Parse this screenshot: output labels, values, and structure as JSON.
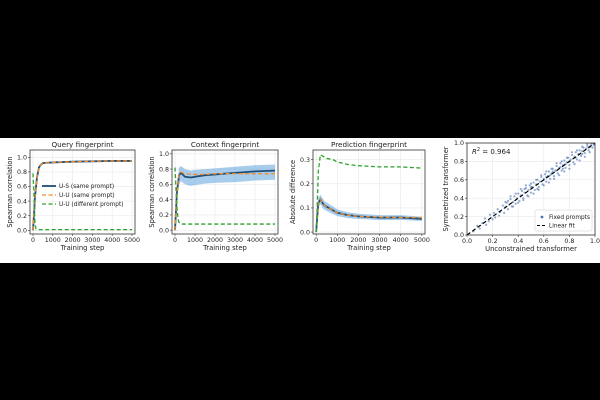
{
  "chart_data": [
    {
      "type": "line",
      "title": "Query fingerprint",
      "xlabel": "Training step",
      "ylabel": "Spearman correlation",
      "xlim": [
        -150,
        5150
      ],
      "ylim": [
        -0.05,
        1.1
      ],
      "xticks": [
        0,
        1000,
        2000,
        3000,
        4000,
        5000
      ],
      "yticks": [
        0.0,
        0.2,
        0.4,
        0.6,
        0.8,
        1.0
      ],
      "ytick_labels": [
        "0.0",
        "0.2",
        "0.4",
        "0.6",
        "0.8",
        "1.0"
      ],
      "grid": true,
      "legend": {
        "position": "center-right",
        "entries": [
          "U-S (same prompt)",
          "U-U (same prompt)",
          "U-U (different prompt)"
        ]
      },
      "series": [
        {
          "name": "U-S (same prompt)",
          "color": "#1f4e79",
          "dash": "solid",
          "x": [
            0,
            50,
            100,
            200,
            300,
            400,
            500,
            700,
            1000,
            2000,
            3000,
            4000,
            5000
          ],
          "y": [
            0.0,
            0.2,
            0.45,
            0.72,
            0.86,
            0.9,
            0.92,
            0.925,
            0.93,
            0.94,
            0.945,
            0.95,
            0.95
          ]
        },
        {
          "name": "U-U (same prompt)",
          "color": "#f28e2b",
          "dash": "dashed",
          "x": [
            0,
            50,
            100,
            200,
            300,
            400,
            500,
            700,
            1000,
            2000,
            3000,
            4000,
            5000
          ],
          "y": [
            0.0,
            0.2,
            0.45,
            0.72,
            0.86,
            0.9,
            0.92,
            0.925,
            0.93,
            0.94,
            0.945,
            0.95,
            0.95
          ]
        },
        {
          "name": "U-U (different prompt)",
          "color": "#2ca02c",
          "dash": "dashed",
          "x": [
            0,
            50,
            100,
            150,
            250,
            500,
            1000,
            2000,
            3000,
            4000,
            5000
          ],
          "y": [
            0.78,
            0.5,
            0.1,
            0.02,
            0.01,
            0.01,
            0.01,
            0.01,
            0.01,
            0.01,
            0.01
          ]
        }
      ]
    },
    {
      "type": "line",
      "title": "Context fingerprint",
      "xlabel": "Training step",
      "ylabel": "Spearman correlation",
      "xlim": [
        -150,
        5150
      ],
      "ylim": [
        -0.05,
        1.05
      ],
      "xticks": [
        0,
        1000,
        2000,
        3000,
        4000,
        5000
      ],
      "yticks": [
        0.0,
        0.2,
        0.4,
        0.6,
        0.8,
        1.0
      ],
      "ytick_labels": [
        "0.0",
        "0.2",
        "0.4",
        "0.6",
        "0.8",
        "1.0"
      ],
      "grid": true,
      "series": [
        {
          "name": "U-S (same prompt)",
          "color": "#1f4e79",
          "dash": "solid",
          "x": [
            0,
            100,
            200,
            300,
            500,
            800,
            1000,
            1500,
            2000,
            3000,
            4000,
            5000
          ],
          "y": [
            0.0,
            0.5,
            0.72,
            0.75,
            0.7,
            0.69,
            0.7,
            0.72,
            0.73,
            0.75,
            0.77,
            0.78
          ],
          "band_low": [
            0.0,
            0.42,
            0.6,
            0.64,
            0.6,
            0.58,
            0.59,
            0.61,
            0.62,
            0.63,
            0.65,
            0.66
          ],
          "band_high": [
            0.0,
            0.58,
            0.82,
            0.84,
            0.8,
            0.78,
            0.79,
            0.8,
            0.81,
            0.83,
            0.85,
            0.86
          ]
        },
        {
          "name": "U-U (same prompt)",
          "color": "#f28e2b",
          "dash": "dashed",
          "x": [
            0,
            100,
            200,
            300,
            500,
            800,
            1000,
            1500,
            2000,
            3000,
            4000,
            5000
          ],
          "y": [
            0.0,
            0.5,
            0.73,
            0.76,
            0.74,
            0.73,
            0.73,
            0.73,
            0.74,
            0.74,
            0.74,
            0.74
          ]
        },
        {
          "name": "U-U (different prompt)",
          "color": "#2ca02c",
          "dash": "dashed",
          "x": [
            0,
            50,
            100,
            150,
            200,
            300,
            500,
            1000,
            2000,
            3000,
            4000,
            5000
          ],
          "y": [
            0.82,
            0.55,
            0.3,
            0.15,
            0.1,
            0.08,
            0.08,
            0.08,
            0.08,
            0.08,
            0.08,
            0.08
          ]
        }
      ]
    },
    {
      "type": "line",
      "title": "Prediction fingerprint",
      "xlabel": "Training step",
      "ylabel": "Absolute difference",
      "xlim": [
        -150,
        5150
      ],
      "ylim": [
        -0.008,
        0.34
      ],
      "xticks": [
        0,
        1000,
        2000,
        3000,
        4000,
        5000
      ],
      "yticks": [
        0.0,
        0.1,
        0.2,
        0.3
      ],
      "ytick_labels": [
        "0.0",
        "0.1",
        "0.2",
        "0.3"
      ],
      "grid": true,
      "series": [
        {
          "name": "U-S (same prompt)",
          "color": "#1f4e79",
          "dash": "solid",
          "x": [
            0,
            50,
            100,
            200,
            300,
            400,
            600,
            800,
            1000,
            1500,
            2000,
            3000,
            4000,
            5000
          ],
          "y": [
            0.0,
            0.06,
            0.12,
            0.135,
            0.12,
            0.11,
            0.1,
            0.09,
            0.08,
            0.07,
            0.065,
            0.06,
            0.06,
            0.055
          ],
          "band_low": [
            0.0,
            0.05,
            0.1,
            0.115,
            0.1,
            0.092,
            0.083,
            0.074,
            0.066,
            0.058,
            0.054,
            0.05,
            0.05,
            0.046
          ],
          "band_high": [
            0.0,
            0.07,
            0.14,
            0.155,
            0.14,
            0.128,
            0.117,
            0.106,
            0.094,
            0.082,
            0.076,
            0.07,
            0.07,
            0.064
          ]
        },
        {
          "name": "U-U (same prompt)",
          "color": "#f28e2b",
          "dash": "dashed",
          "x": [
            0,
            50,
            100,
            200,
            300,
            400,
            600,
            800,
            1000,
            1500,
            2000,
            3000,
            4000,
            5000
          ],
          "y": [
            0.0,
            0.06,
            0.12,
            0.135,
            0.12,
            0.11,
            0.1,
            0.09,
            0.08,
            0.07,
            0.065,
            0.062,
            0.06,
            0.06
          ]
        },
        {
          "name": "U-U (different prompt)",
          "color": "#2ca02c",
          "dash": "dashed",
          "x": [
            0,
            50,
            100,
            200,
            300,
            500,
            800,
            1000,
            1500,
            2000,
            3000,
            4000,
            5000
          ],
          "y": [
            0.0,
            0.1,
            0.25,
            0.32,
            0.315,
            0.305,
            0.3,
            0.29,
            0.28,
            0.275,
            0.27,
            0.27,
            0.265
          ]
        }
      ]
    },
    {
      "type": "scatter",
      "title": "",
      "xlabel": "Unconstrained transformer",
      "ylabel": "Symmetrized transformer",
      "xlim": [
        0,
        1
      ],
      "ylim": [
        0,
        1
      ],
      "xticks": [
        0.0,
        0.2,
        0.4,
        0.6,
        0.8,
        1.0
      ],
      "yticks": [
        0.0,
        0.2,
        0.4,
        0.6,
        0.8,
        1.0
      ],
      "xtick_labels": [
        "0.0",
        "0.2",
        "0.4",
        "0.6",
        "0.8",
        "1.0"
      ],
      "ytick_labels": [
        "0.0",
        "0.2",
        "0.4",
        "0.6",
        "0.8",
        "1.0"
      ],
      "grid": true,
      "annotation": {
        "prefix": "R",
        "sup": "2",
        "suffix": " = 0.964"
      },
      "legend": {
        "position": "lower-right",
        "entries": [
          "Fixed prompts",
          "Linear fit"
        ]
      },
      "point_color": "#4a72b0",
      "fit_color": "#000000",
      "fit": {
        "slope": 1.0,
        "intercept": 0.0
      },
      "points": [
        [
          0.05,
          0.04
        ],
        [
          0.08,
          0.1
        ],
        [
          0.1,
          0.07
        ],
        [
          0.12,
          0.13
        ],
        [
          0.14,
          0.18
        ],
        [
          0.15,
          0.11
        ],
        [
          0.17,
          0.15
        ],
        [
          0.18,
          0.22
        ],
        [
          0.2,
          0.17
        ],
        [
          0.21,
          0.24
        ],
        [
          0.22,
          0.19
        ],
        [
          0.24,
          0.28
        ],
        [
          0.25,
          0.21
        ],
        [
          0.26,
          0.25
        ],
        [
          0.28,
          0.32
        ],
        [
          0.29,
          0.24
        ],
        [
          0.3,
          0.3
        ],
        [
          0.31,
          0.35
        ],
        [
          0.32,
          0.28
        ],
        [
          0.33,
          0.33
        ],
        [
          0.34,
          0.39
        ],
        [
          0.35,
          0.31
        ],
        [
          0.36,
          0.36
        ],
        [
          0.37,
          0.42
        ],
        [
          0.38,
          0.34
        ],
        [
          0.39,
          0.4
        ],
        [
          0.4,
          0.45
        ],
        [
          0.41,
          0.37
        ],
        [
          0.42,
          0.43
        ],
        [
          0.43,
          0.48
        ],
        [
          0.44,
          0.4
        ],
        [
          0.45,
          0.46
        ],
        [
          0.46,
          0.51
        ],
        [
          0.47,
          0.43
        ],
        [
          0.48,
          0.49
        ],
        [
          0.49,
          0.54
        ],
        [
          0.5,
          0.46
        ],
        [
          0.51,
          0.52
        ],
        [
          0.52,
          0.57
        ],
        [
          0.53,
          0.49
        ],
        [
          0.54,
          0.55
        ],
        [
          0.55,
          0.6
        ],
        [
          0.56,
          0.52
        ],
        [
          0.57,
          0.58
        ],
        [
          0.58,
          0.63
        ],
        [
          0.59,
          0.55
        ],
        [
          0.6,
          0.61
        ],
        [
          0.61,
          0.66
        ],
        [
          0.62,
          0.58
        ],
        [
          0.63,
          0.64
        ],
        [
          0.64,
          0.69
        ],
        [
          0.65,
          0.61
        ],
        [
          0.66,
          0.67
        ],
        [
          0.67,
          0.72
        ],
        [
          0.68,
          0.64
        ],
        [
          0.69,
          0.7
        ],
        [
          0.7,
          0.75
        ],
        [
          0.71,
          0.67
        ],
        [
          0.72,
          0.73
        ],
        [
          0.73,
          0.78
        ],
        [
          0.74,
          0.7
        ],
        [
          0.75,
          0.76
        ],
        [
          0.76,
          0.81
        ],
        [
          0.77,
          0.73
        ],
        [
          0.78,
          0.79
        ],
        [
          0.79,
          0.84
        ],
        [
          0.8,
          0.76
        ],
        [
          0.81,
          0.82
        ],
        [
          0.82,
          0.87
        ],
        [
          0.83,
          0.79
        ],
        [
          0.84,
          0.85
        ],
        [
          0.85,
          0.9
        ],
        [
          0.86,
          0.82
        ],
        [
          0.87,
          0.88
        ],
        [
          0.88,
          0.92
        ],
        [
          0.89,
          0.86
        ],
        [
          0.9,
          0.91
        ],
        [
          0.91,
          0.95
        ],
        [
          0.92,
          0.89
        ],
        [
          0.93,
          0.94
        ],
        [
          0.94,
          0.97
        ],
        [
          0.95,
          0.92
        ],
        [
          0.96,
          0.96
        ],
        [
          0.97,
          0.99
        ],
        [
          0.98,
          0.95
        ],
        [
          0.99,
          0.98
        ],
        [
          0.3,
          0.36
        ],
        [
          0.32,
          0.37
        ],
        [
          0.34,
          0.42
        ],
        [
          0.36,
          0.31
        ],
        [
          0.38,
          0.45
        ],
        [
          0.4,
          0.35
        ],
        [
          0.42,
          0.5
        ],
        [
          0.44,
          0.38
        ],
        [
          0.46,
          0.54
        ],
        [
          0.48,
          0.42
        ],
        [
          0.5,
          0.56
        ],
        [
          0.52,
          0.45
        ],
        [
          0.54,
          0.6
        ],
        [
          0.56,
          0.49
        ],
        [
          0.58,
          0.65
        ],
        [
          0.6,
          0.54
        ],
        [
          0.62,
          0.69
        ],
        [
          0.64,
          0.57
        ],
        [
          0.66,
          0.72
        ],
        [
          0.68,
          0.61
        ],
        [
          0.7,
          0.78
        ],
        [
          0.72,
          0.65
        ],
        [
          0.74,
          0.8
        ],
        [
          0.76,
          0.69
        ],
        [
          0.78,
          0.84
        ],
        [
          0.8,
          0.72
        ],
        [
          0.82,
          0.9
        ],
        [
          0.84,
          0.77
        ],
        [
          0.86,
          0.92
        ],
        [
          0.88,
          0.81
        ],
        [
          0.9,
          0.96
        ],
        [
          0.92,
          0.85
        ],
        [
          0.94,
          0.99
        ],
        [
          0.96,
          0.9
        ],
        [
          0.98,
          1.0
        ],
        [
          0.55,
          0.5
        ],
        [
          0.6,
          0.6
        ],
        [
          0.65,
          0.65
        ],
        [
          0.7,
          0.7
        ],
        [
          0.75,
          0.72
        ],
        [
          0.8,
          0.8
        ],
        [
          0.85,
          0.84
        ],
        [
          0.9,
          0.88
        ],
        [
          0.95,
          0.95
        ],
        [
          0.45,
          0.5
        ],
        [
          0.5,
          0.52
        ],
        [
          0.62,
          0.63
        ],
        [
          0.67,
          0.69
        ],
        [
          0.73,
          0.74
        ],
        [
          0.77,
          0.77
        ]
      ]
    }
  ]
}
